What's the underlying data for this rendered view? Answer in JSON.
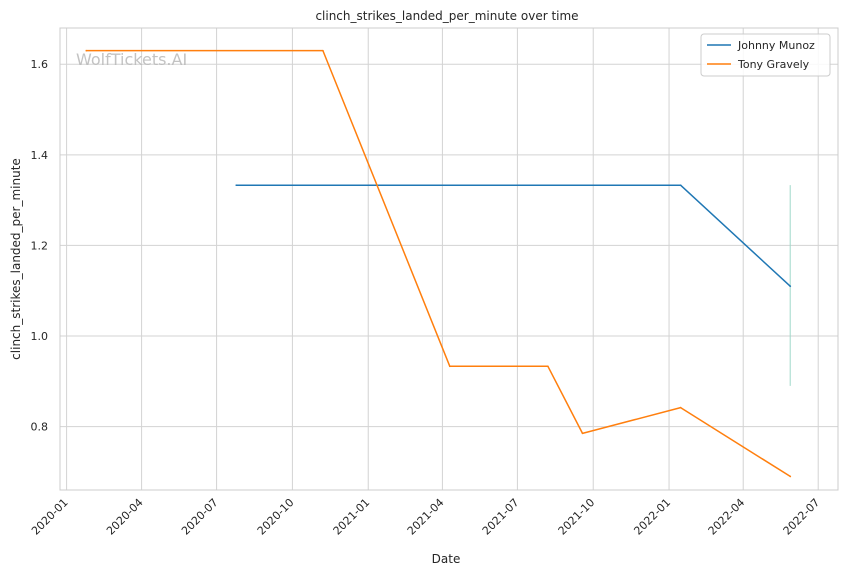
{
  "chart_data": {
    "type": "line",
    "title": "clinch_strikes_landed_per_minute over time",
    "xlabel": "Date",
    "ylabel": "clinch_strikes_landed_per_minute",
    "watermark": "WolfTickets.AI",
    "x_ticks": [
      "2020-01",
      "2020-04",
      "2020-07",
      "2020-10",
      "2021-01",
      "2021-04",
      "2021-07",
      "2021-10",
      "2022-01",
      "2022-04",
      "2022-07"
    ],
    "y_ticks": [
      "0.8",
      "1.0",
      "1.2",
      "1.4",
      "1.6"
    ],
    "xlim": [
      "2019-12-24",
      "2022-07-25"
    ],
    "ylim": [
      0.66,
      1.68
    ],
    "grid": true,
    "legend_position": "top-right",
    "series": [
      {
        "name": "Johnny Munoz",
        "color": "#1f77b4",
        "points": [
          {
            "x": "2020-07-25",
            "y": 1.333
          },
          {
            "x": "2022-01-15",
            "y": 1.333
          },
          {
            "x": "2022-05-28",
            "y": 1.11
          }
        ]
      },
      {
        "name": "Tony Gravely",
        "color": "#ff7f0e",
        "points": [
          {
            "x": "2020-01-25",
            "y": 1.63
          },
          {
            "x": "2020-11-07",
            "y": 1.63
          },
          {
            "x": "2021-04-10",
            "y": 0.933
          },
          {
            "x": "2021-08-07",
            "y": 0.933
          },
          {
            "x": "2021-09-18",
            "y": 0.785
          },
          {
            "x": "2022-01-15",
            "y": 0.842
          },
          {
            "x": "2022-05-28",
            "y": 0.69
          }
        ]
      }
    ],
    "range_marker": {
      "x": "2022-05-28",
      "y_min": 0.89,
      "y_max": 1.333,
      "color": "#9fd8c9"
    }
  }
}
